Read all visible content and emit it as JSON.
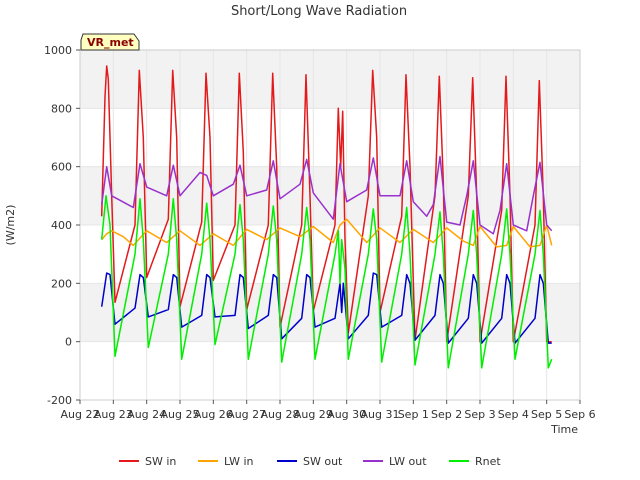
{
  "chart_data": {
    "type": "line",
    "title": "Short/Long Wave Radiation",
    "xlabel": "Time",
    "ylabel": "(W/m2)",
    "badge": "VR_met",
    "ylim": [
      -200,
      1000
    ],
    "xlim": [
      0,
      15
    ],
    "y_ticks": [
      -200,
      0,
      200,
      400,
      600,
      800,
      1000
    ],
    "x_ticks": [
      {
        "v": 0,
        "label": "Aug 22"
      },
      {
        "v": 1,
        "label": "Aug 23"
      },
      {
        "v": 2,
        "label": "Aug 24"
      },
      {
        "v": 3,
        "label": "Aug 25"
      },
      {
        "v": 4,
        "label": "Aug 26"
      },
      {
        "v": 5,
        "label": "Aug 27"
      },
      {
        "v": 6,
        "label": "Aug 28"
      },
      {
        "v": 7,
        "label": "Aug 29"
      },
      {
        "v": 8,
        "label": "Aug 30"
      },
      {
        "v": 9,
        "label": "Aug 31"
      },
      {
        "v": 10,
        "label": "Sep 1"
      },
      {
        "v": 11,
        "label": "Sep 2"
      },
      {
        "v": 12,
        "label": "Sep 3"
      },
      {
        "v": 13,
        "label": "Sep 4"
      },
      {
        "v": 14,
        "label": "Sep 5"
      },
      {
        "v": 15,
        "label": "Sep 6"
      }
    ],
    "grid": true,
    "legend_position": "bottom",
    "series": [
      {
        "name": "SW in",
        "color": "#e31a1c",
        "points": [
          [
            0.65,
            430
          ],
          [
            0.75,
            840
          ],
          [
            0.8,
            945
          ],
          [
            0.85,
            900
          ],
          [
            0.95,
            500
          ],
          [
            1.05,
            135
          ],
          [
            1.65,
            400
          ],
          [
            1.78,
            930
          ],
          [
            1.9,
            700
          ],
          [
            2.0,
            220
          ],
          [
            2.65,
            420
          ],
          [
            2.78,
            930
          ],
          [
            2.9,
            700
          ],
          [
            3.0,
            120
          ],
          [
            3.65,
            410
          ],
          [
            3.78,
            920
          ],
          [
            3.9,
            700
          ],
          [
            4.0,
            210
          ],
          [
            4.65,
            400
          ],
          [
            4.78,
            920
          ],
          [
            4.9,
            650
          ],
          [
            5.0,
            110
          ],
          [
            5.65,
            400
          ],
          [
            5.78,
            920
          ],
          [
            5.9,
            600
          ],
          [
            6.0,
            50
          ],
          [
            6.65,
            400
          ],
          [
            6.78,
            915
          ],
          [
            6.9,
            500
          ],
          [
            7.0,
            105
          ],
          [
            7.65,
            400
          ],
          [
            7.75,
            800
          ],
          [
            7.82,
            600
          ],
          [
            7.88,
            790
          ],
          [
            7.95,
            350
          ],
          [
            8.05,
            30
          ],
          [
            8.65,
            500
          ],
          [
            8.78,
            930
          ],
          [
            8.9,
            700
          ],
          [
            9.0,
            100
          ],
          [
            9.65,
            430
          ],
          [
            9.78,
            915
          ],
          [
            9.9,
            600
          ],
          [
            10.05,
            5
          ],
          [
            10.65,
            500
          ],
          [
            10.78,
            910
          ],
          [
            10.9,
            550
          ],
          [
            11.0,
            0
          ],
          [
            11.65,
            500
          ],
          [
            11.78,
            905
          ],
          [
            11.9,
            500
          ],
          [
            12.0,
            0
          ],
          [
            12.65,
            450
          ],
          [
            12.78,
            910
          ],
          [
            12.9,
            500
          ],
          [
            13.0,
            0
          ],
          [
            13.65,
            400
          ],
          [
            13.78,
            895
          ],
          [
            13.9,
            500
          ],
          [
            14.0,
            0
          ],
          [
            14.15,
            0
          ]
        ]
      },
      {
        "name": "LW in",
        "color": "#ffa500",
        "points": [
          [
            0.65,
            350
          ],
          [
            0.8,
            370
          ],
          [
            0.95,
            380
          ],
          [
            1.3,
            360
          ],
          [
            1.6,
            330
          ],
          [
            2.0,
            380
          ],
          [
            2.6,
            340
          ],
          [
            3.0,
            380
          ],
          [
            3.6,
            330
          ],
          [
            4.0,
            370
          ],
          [
            4.6,
            330
          ],
          [
            5.0,
            385
          ],
          [
            5.6,
            350
          ],
          [
            6.0,
            390
          ],
          [
            6.6,
            360
          ],
          [
            7.0,
            395
          ],
          [
            7.6,
            340
          ],
          [
            7.8,
            400
          ],
          [
            8.0,
            420
          ],
          [
            8.6,
            340
          ],
          [
            9.0,
            390
          ],
          [
            9.6,
            340
          ],
          [
            10.0,
            385
          ],
          [
            10.6,
            340
          ],
          [
            11.0,
            390
          ],
          [
            11.5,
            345
          ],
          [
            11.8,
            330
          ],
          [
            12.0,
            395
          ],
          [
            12.5,
            325
          ],
          [
            12.8,
            330
          ],
          [
            13.0,
            395
          ],
          [
            13.5,
            325
          ],
          [
            13.8,
            330
          ],
          [
            14.0,
            400
          ],
          [
            14.15,
            330
          ]
        ]
      },
      {
        "name": "SW out",
        "color": "#0000cd",
        "points": [
          [
            0.65,
            120
          ],
          [
            0.8,
            235
          ],
          [
            0.9,
            230
          ],
          [
            1.05,
            60
          ],
          [
            1.65,
            115
          ],
          [
            1.8,
            230
          ],
          [
            1.9,
            220
          ],
          [
            2.05,
            85
          ],
          [
            2.65,
            110
          ],
          [
            2.8,
            230
          ],
          [
            2.9,
            220
          ],
          [
            3.05,
            50
          ],
          [
            3.65,
            90
          ],
          [
            3.8,
            230
          ],
          [
            3.9,
            220
          ],
          [
            4.05,
            85
          ],
          [
            4.65,
            90
          ],
          [
            4.8,
            230
          ],
          [
            4.9,
            220
          ],
          [
            5.05,
            45
          ],
          [
            5.65,
            90
          ],
          [
            5.8,
            230
          ],
          [
            5.9,
            220
          ],
          [
            6.05,
            10
          ],
          [
            6.65,
            80
          ],
          [
            6.8,
            230
          ],
          [
            6.9,
            220
          ],
          [
            7.05,
            50
          ],
          [
            7.65,
            80
          ],
          [
            7.8,
            200
          ],
          [
            7.85,
            100
          ],
          [
            7.9,
            200
          ],
          [
            8.05,
            10
          ],
          [
            8.65,
            90
          ],
          [
            8.8,
            235
          ],
          [
            8.9,
            230
          ],
          [
            9.05,
            50
          ],
          [
            9.65,
            90
          ],
          [
            9.8,
            230
          ],
          [
            9.9,
            200
          ],
          [
            10.05,
            5
          ],
          [
            10.65,
            90
          ],
          [
            10.8,
            230
          ],
          [
            10.9,
            200
          ],
          [
            11.05,
            -5
          ],
          [
            11.65,
            80
          ],
          [
            11.8,
            230
          ],
          [
            11.9,
            200
          ],
          [
            12.05,
            -5
          ],
          [
            12.65,
            80
          ],
          [
            12.8,
            230
          ],
          [
            12.9,
            200
          ],
          [
            13.05,
            -5
          ],
          [
            13.65,
            80
          ],
          [
            13.8,
            230
          ],
          [
            13.9,
            200
          ],
          [
            14.05,
            -5
          ],
          [
            14.15,
            -5
          ]
        ]
      },
      {
        "name": "LW out",
        "color": "#9932cc",
        "points": [
          [
            0.65,
            470
          ],
          [
            0.8,
            600
          ],
          [
            0.95,
            500
          ],
          [
            1.6,
            460
          ],
          [
            1.8,
            610
          ],
          [
            2.0,
            530
          ],
          [
            2.6,
            500
          ],
          [
            2.8,
            605
          ],
          [
            3.0,
            500
          ],
          [
            3.6,
            580
          ],
          [
            3.8,
            570
          ],
          [
            4.0,
            500
          ],
          [
            4.6,
            540
          ],
          [
            4.8,
            605
          ],
          [
            5.0,
            500
          ],
          [
            5.6,
            520
          ],
          [
            5.8,
            620
          ],
          [
            6.0,
            490
          ],
          [
            6.6,
            540
          ],
          [
            6.8,
            625
          ],
          [
            7.0,
            510
          ],
          [
            7.6,
            420
          ],
          [
            7.8,
            610
          ],
          [
            8.0,
            480
          ],
          [
            8.6,
            520
          ],
          [
            8.8,
            630
          ],
          [
            9.0,
            500
          ],
          [
            9.6,
            500
          ],
          [
            9.8,
            620
          ],
          [
            10.0,
            480
          ],
          [
            10.4,
            430
          ],
          [
            10.6,
            470
          ],
          [
            10.8,
            635
          ],
          [
            11.0,
            410
          ],
          [
            11.4,
            400
          ],
          [
            11.6,
            500
          ],
          [
            11.8,
            620
          ],
          [
            12.0,
            400
          ],
          [
            12.4,
            370
          ],
          [
            12.6,
            450
          ],
          [
            12.8,
            610
          ],
          [
            13.0,
            400
          ],
          [
            13.4,
            380
          ],
          [
            13.6,
            500
          ],
          [
            13.8,
            615
          ],
          [
            14.0,
            400
          ],
          [
            14.15,
            380
          ]
        ]
      },
      {
        "name": "Rnet",
        "color": "#00ee00",
        "points": [
          [
            0.65,
            350
          ],
          [
            0.78,
            500
          ],
          [
            0.9,
            400
          ],
          [
            1.05,
            -50
          ],
          [
            1.65,
            300
          ],
          [
            1.8,
            490
          ],
          [
            1.9,
            350
          ],
          [
            2.05,
            -20
          ],
          [
            2.65,
            300
          ],
          [
            2.8,
            490
          ],
          [
            2.9,
            350
          ],
          [
            3.05,
            -60
          ],
          [
            3.65,
            300
          ],
          [
            3.8,
            475
          ],
          [
            3.9,
            350
          ],
          [
            4.05,
            -10
          ],
          [
            4.65,
            300
          ],
          [
            4.8,
            470
          ],
          [
            4.9,
            350
          ],
          [
            5.05,
            -60
          ],
          [
            5.65,
            300
          ],
          [
            5.8,
            465
          ],
          [
            5.9,
            350
          ],
          [
            6.05,
            -70
          ],
          [
            6.65,
            300
          ],
          [
            6.8,
            460
          ],
          [
            6.9,
            350
          ],
          [
            7.05,
            -60
          ],
          [
            7.65,
            300
          ],
          [
            7.75,
            380
          ],
          [
            7.8,
            200
          ],
          [
            7.85,
            350
          ],
          [
            7.95,
            250
          ],
          [
            8.05,
            -60
          ],
          [
            8.65,
            300
          ],
          [
            8.8,
            455
          ],
          [
            8.9,
            350
          ],
          [
            9.05,
            -70
          ],
          [
            9.65,
            300
          ],
          [
            9.8,
            460
          ],
          [
            9.9,
            300
          ],
          [
            10.05,
            -80
          ],
          [
            10.65,
            300
          ],
          [
            10.8,
            445
          ],
          [
            10.9,
            300
          ],
          [
            11.05,
            -90
          ],
          [
            11.65,
            300
          ],
          [
            11.8,
            450
          ],
          [
            11.9,
            300
          ],
          [
            12.05,
            -90
          ],
          [
            12.65,
            300
          ],
          [
            12.8,
            455
          ],
          [
            12.9,
            300
          ],
          [
            13.05,
            -60
          ],
          [
            13.65,
            300
          ],
          [
            13.8,
            450
          ],
          [
            13.9,
            300
          ],
          [
            14.05,
            -90
          ],
          [
            14.15,
            -60
          ]
        ]
      }
    ]
  }
}
